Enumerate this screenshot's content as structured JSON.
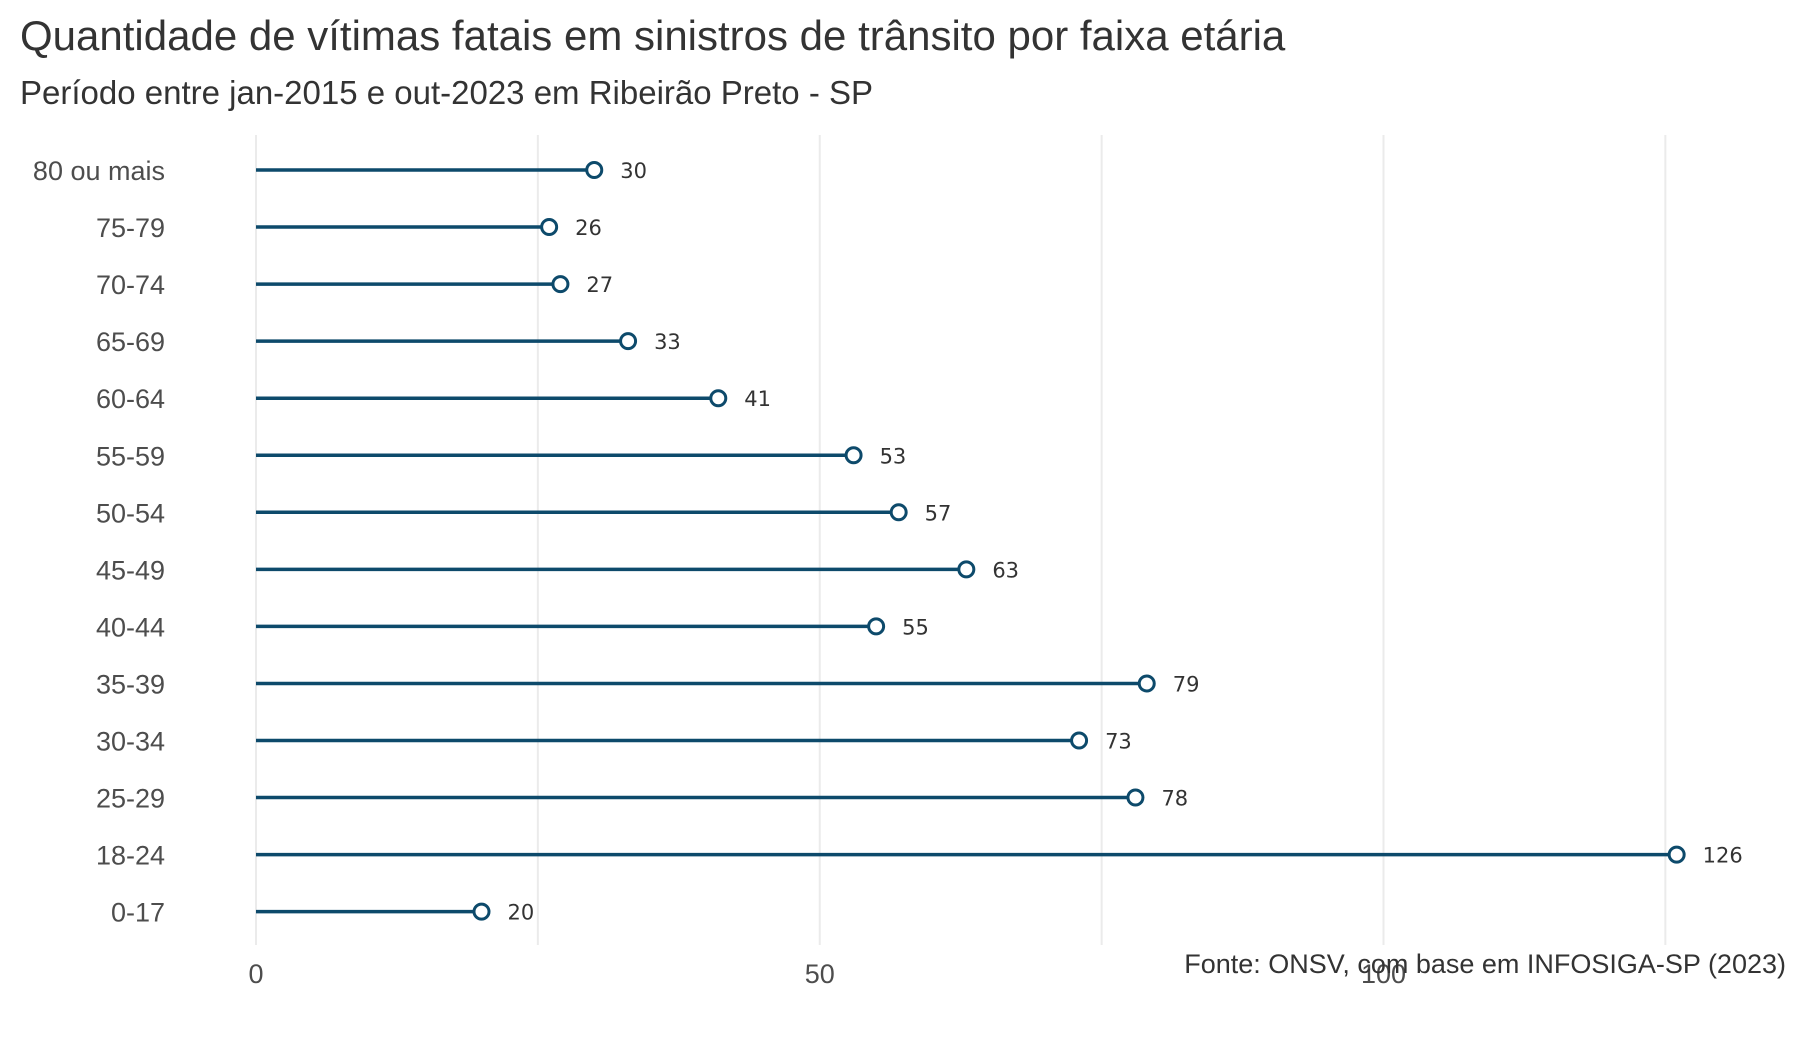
{
  "title": "Quantidade de vítimas fatais em sinistros de trânsito por faixa etária",
  "subtitle": "Período entre jan-2015 e out-2023 em Ribeirão Preto - SP",
  "caption": "Fonte: ONSV, com base em INFOSIGA-SP (2023)",
  "colors": {
    "line": "#0d4a6b",
    "point_fill": "#ffffff",
    "grid": "#ebebeb"
  },
  "chart_data": {
    "type": "lollipop",
    "orientation": "horizontal",
    "title": "Quantidade de vítimas fatais em sinistros de trânsito por faixa etária",
    "subtitle": "Período entre jan-2015 e out-2023 em Ribeirão Preto - SP",
    "categories": [
      "0-17",
      "18-24",
      "25-29",
      "30-34",
      "35-39",
      "40-44",
      "45-49",
      "50-54",
      "55-59",
      "60-64",
      "65-69",
      "70-74",
      "75-79",
      "80 ou mais"
    ],
    "values": [
      20,
      126,
      78,
      73,
      79,
      55,
      63,
      57,
      53,
      41,
      33,
      27,
      26,
      30
    ],
    "xlim": [
      0,
      126
    ],
    "xticks": [
      0,
      50,
      100
    ],
    "grid": true,
    "data_labels": true
  }
}
